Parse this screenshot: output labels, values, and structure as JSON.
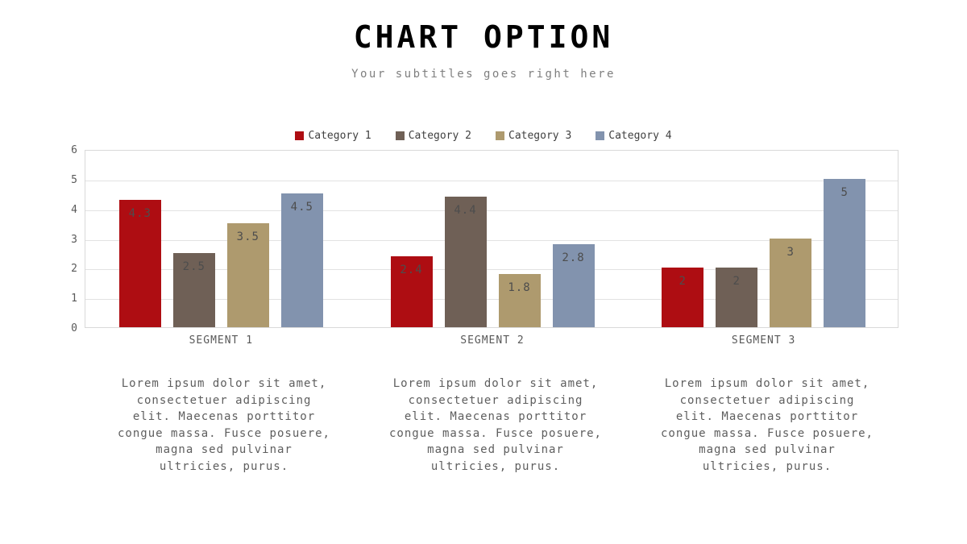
{
  "slide": {
    "title": "CHART OPTION",
    "subtitle": "Your subtitles goes right here"
  },
  "chart_data": {
    "type": "bar",
    "categories": [
      "SEGMENT 1",
      "SEGMENT 2",
      "SEGMENT 3"
    ],
    "series": [
      {
        "name": "Category 1",
        "color": "#AE0D12",
        "values": [
          4.3,
          2.4,
          2
        ]
      },
      {
        "name": "Category 2",
        "color": "#6F6056",
        "values": [
          2.5,
          4.4,
          2
        ]
      },
      {
        "name": "Category 3",
        "color": "#AE9A6E",
        "values": [
          3.5,
          1.8,
          3
        ]
      },
      {
        "name": "Category 4",
        "color": "#8293AE",
        "values": [
          4.5,
          2.8,
          5
        ]
      }
    ],
    "bar_value_labels": [
      [
        "4.3",
        "2.4",
        "2"
      ],
      [
        "2.5",
        "4.4",
        "2"
      ],
      [
        "3.5",
        "1.8",
        "3"
      ],
      [
        "4.5",
        "2.8",
        "5"
      ]
    ],
    "ylim": [
      0,
      6
    ],
    "yticks": [
      0,
      1,
      2,
      3,
      4,
      5,
      6
    ],
    "grid": true,
    "legend_position": "top",
    "colors": {
      "grid_line": "#E2E2E2",
      "plot_border": "#D9D9D9",
      "tick_label": "#595959",
      "bar_value_label": "#4D4D4D"
    }
  },
  "descriptions": [
    "Lorem ipsum dolor sit amet,\nconsectetuer adipiscing\nelit. Maecenas porttitor\ncongue massa. Fusce posuere,\nmagna sed pulvinar\nultricies, purus.",
    "Lorem ipsum dolor sit amet,\nconsectetuer adipiscing\nelit. Maecenas porttitor\ncongue massa. Fusce posuere,\nmagna sed pulvinar\nultricies, purus.",
    "Lorem ipsum dolor sit amet,\nconsectetuer adipiscing\nelit. Maecenas porttitor\ncongue massa. Fusce posuere,\nmagna sed pulvinar\nultricies, purus."
  ]
}
